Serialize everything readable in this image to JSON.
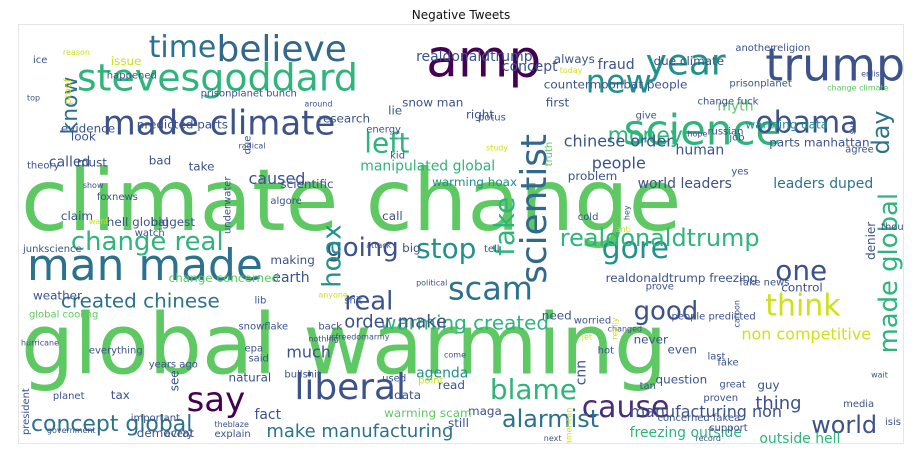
{
  "title": "Negative Tweets",
  "words": [
    {
      "text": "climate change",
      "color": "#5ec962"
    },
    {
      "text": "global warming",
      "color": "#5ec962"
    },
    {
      "text": "man made",
      "color": "#2c728e"
    },
    {
      "text": "amp",
      "color": "#440154"
    },
    {
      "text": "trump",
      "color": "#3b528b"
    },
    {
      "text": "believe",
      "color": "#31688e"
    },
    {
      "text": "stevesgoddard",
      "color": "#2fb47c"
    },
    {
      "text": "science",
      "color": "#2fb47c"
    },
    {
      "text": "year",
      "color": "#21918c"
    },
    {
      "text": "time",
      "color": "#2c728e"
    },
    {
      "text": "made climate",
      "color": "#3b528b"
    },
    {
      "text": "new",
      "color": "#21918c"
    },
    {
      "text": "obama",
      "color": "#3b528b"
    },
    {
      "text": "scientist",
      "color": "#31688e"
    },
    {
      "text": "liberal",
      "color": "#3b528b"
    },
    {
      "text": "say",
      "color": "#440154"
    },
    {
      "text": "gore",
      "color": "#21918c"
    },
    {
      "text": "think",
      "color": "#cde11d"
    },
    {
      "text": "cause",
      "color": "#472d7b"
    },
    {
      "text": "blame",
      "color": "#2fb47c"
    },
    {
      "text": "scam",
      "color": "#2c728e"
    },
    {
      "text": "real",
      "color": "#3b528b"
    },
    {
      "text": "change real",
      "color": "#2fb47c"
    },
    {
      "text": "going",
      "color": "#3b528b"
    },
    {
      "text": "stop",
      "color": "#21918c"
    },
    {
      "text": "hoax",
      "color": "#21918c"
    },
    {
      "text": "fake",
      "color": "#2fb47c"
    },
    {
      "text": "left",
      "color": "#2fb47c"
    },
    {
      "text": "money",
      "color": "#2fb47c"
    },
    {
      "text": "know",
      "color": "#2c728e"
    },
    {
      "text": "one",
      "color": "#3b528b"
    },
    {
      "text": "good",
      "color": "#3b528b"
    },
    {
      "text": "world",
      "color": "#3b528b"
    },
    {
      "text": "made global",
      "color": "#2fb47c"
    },
    {
      "text": "alarmist",
      "color": "#2c728e"
    },
    {
      "text": "concept global",
      "color": "#2c728e"
    },
    {
      "text": "realdonaldtrump",
      "color": "#2fb47c"
    },
    {
      "text": "created chinese",
      "color": "#2c728e"
    },
    {
      "text": "warming created",
      "color": "#2fb47c"
    },
    {
      "text": "make manufacturing",
      "color": "#2c728e"
    },
    {
      "text": "order make",
      "color": "#3b528b"
    },
    {
      "text": "day",
      "color": "#2c728e"
    },
    {
      "text": "chinese order",
      "color": "#3b528b"
    },
    {
      "text": "people",
      "color": "#3b528b"
    },
    {
      "text": "earth",
      "color": "#3b528b"
    },
    {
      "text": "fact",
      "color": "#3b528b"
    },
    {
      "text": "thing",
      "color": "#3b528b"
    },
    {
      "text": "much",
      "color": "#3b528b"
    },
    {
      "text": "manufacturing non",
      "color": "#3b528b"
    },
    {
      "text": "agenda",
      "color": "#21918c"
    },
    {
      "text": "non competitive",
      "color": "#cde11d"
    },
    {
      "text": "caused",
      "color": "#3b528b"
    },
    {
      "text": "called",
      "color": "#3b528b"
    },
    {
      "text": "fraud",
      "color": "#3b528b"
    },
    {
      "text": "concept",
      "color": "#3b528b"
    },
    {
      "text": "myth",
      "color": "#5ec962"
    },
    {
      "text": "human",
      "color": "#3b528b"
    },
    {
      "text": "warming data",
      "color": "#21918c"
    },
    {
      "text": "world leaders",
      "color": "#3b528b"
    },
    {
      "text": "leaders duped",
      "color": "#2c728e"
    },
    {
      "text": "realdonaldtrump freezing",
      "color": "#3b528b"
    },
    {
      "text": "freezing outside",
      "color": "#2fb47c"
    },
    {
      "text": "outside hell",
      "color": "#2fb47c"
    },
    {
      "text": "duped manipulated",
      "color": "#3b528b"
    },
    {
      "text": "manipulated global",
      "color": "#2fb47c"
    },
    {
      "text": "warming hoax",
      "color": "#21918c"
    },
    {
      "text": "realdonaldtrump",
      "color": "#3b528b"
    },
    {
      "text": "countermoonbat people",
      "color": "#3b528b"
    },
    {
      "text": "predicted parts",
      "color": "#3b528b"
    },
    {
      "text": "evidence",
      "color": "#3b528b"
    },
    {
      "text": "hell global",
      "color": "#3b528b"
    },
    {
      "text": "change concerned",
      "color": "#5ec962"
    },
    {
      "text": "weather",
      "color": "#3b528b"
    },
    {
      "text": "global cooling",
      "color": "#5ec962"
    },
    {
      "text": "cnn",
      "color": "#3b528b"
    },
    {
      "text": "maga",
      "color": "#3b528b"
    },
    {
      "text": "control",
      "color": "#3b528b"
    },
    {
      "text": "denier",
      "color": "#3b528b"
    },
    {
      "text": "prove",
      "color": "#3b528b"
    },
    {
      "text": "problem",
      "color": "#3b528b"
    },
    {
      "text": "scientific",
      "color": "#3b528b"
    },
    {
      "text": "claim",
      "color": "#3b528b"
    },
    {
      "text": "biggest",
      "color": "#3b528b"
    },
    {
      "text": "must",
      "color": "#3b528b"
    },
    {
      "text": "bad",
      "color": "#3b528b"
    },
    {
      "text": "take",
      "color": "#3b528b"
    },
    {
      "text": "look",
      "color": "#3b528b"
    },
    {
      "text": "natural",
      "color": "#3b528b"
    },
    {
      "text": "democrat",
      "color": "#3b528b"
    },
    {
      "text": "see",
      "color": "#3b528b"
    },
    {
      "text": "warming scam",
      "color": "#5ec962"
    },
    {
      "text": "still",
      "color": "#3b528b"
    },
    {
      "text": "read",
      "color": "#3b528b"
    },
    {
      "text": "data",
      "color": "#3b528b"
    },
    {
      "text": "need",
      "color": "#3b528b"
    },
    {
      "text": "never",
      "color": "#3b528b"
    },
    {
      "text": "even",
      "color": "#3b528b"
    },
    {
      "text": "fake news",
      "color": "#3b528b"
    },
    {
      "text": "question",
      "color": "#3b528b"
    },
    {
      "text": "people predicted",
      "color": "#3b528b"
    },
    {
      "text": "concerned fakea",
      "color": "#3b528b"
    },
    {
      "text": "snow man",
      "color": "#3b528b"
    },
    {
      "text": "research",
      "color": "#3b528b"
    },
    {
      "text": "right",
      "color": "#3b528b"
    },
    {
      "text": "always",
      "color": "#3b528b"
    },
    {
      "text": "due climate",
      "color": "#3b528b"
    },
    {
      "text": "parts manhattan",
      "color": "#3b528b"
    },
    {
      "text": "agree",
      "color": "#3b528b"
    },
    {
      "text": "job",
      "color": "#3b528b"
    },
    {
      "text": "yes",
      "color": "#3b528b"
    },
    {
      "text": "cold",
      "color": "#3b528b"
    },
    {
      "text": "tell",
      "color": "#3b528b"
    },
    {
      "text": "lib",
      "color": "#3b528b"
    },
    {
      "text": "snowflake",
      "color": "#3b528b"
    },
    {
      "text": "call",
      "color": "#3b528b"
    },
    {
      "text": "making",
      "color": "#3b528b"
    },
    {
      "text": "big",
      "color": "#3b528b"
    },
    {
      "text": "hot",
      "color": "#3b528b"
    },
    {
      "text": "tan",
      "color": "#3b528b"
    },
    {
      "text": "issue",
      "color": "#cde11d"
    },
    {
      "text": "ice",
      "color": "#3b528b"
    },
    {
      "text": "happened",
      "color": "#3b528b"
    },
    {
      "text": "prisonplanet bunch",
      "color": "#3b528b"
    },
    {
      "text": "energy",
      "color": "#3b528b"
    },
    {
      "text": "potus",
      "color": "#3b528b"
    },
    {
      "text": "first",
      "color": "#3b528b"
    },
    {
      "text": "give",
      "color": "#3b528b"
    },
    {
      "text": "change fuck",
      "color": "#3b528b"
    },
    {
      "text": "russian",
      "color": "#3b528b"
    },
    {
      "text": "lie",
      "color": "#3b528b"
    },
    {
      "text": "kid",
      "color": "#3b528b"
    },
    {
      "text": "study",
      "color": "#cde11d"
    },
    {
      "text": "truth",
      "color": "#5ec962"
    },
    {
      "text": "foxnews",
      "color": "#3b528b"
    },
    {
      "text": "show",
      "color": "#3b528b"
    },
    {
      "text": "theory",
      "color": "#3b528b"
    },
    {
      "text": "underwater",
      "color": "#3b528b"
    },
    {
      "text": "due",
      "color": "#3b528b"
    },
    {
      "text": "algore",
      "color": "#3b528b"
    },
    {
      "text": "watch",
      "color": "#3b528b"
    },
    {
      "text": "junkscience",
      "color": "#3b528b"
    },
    {
      "text": "attack",
      "color": "#3b528b"
    },
    {
      "text": "anti",
      "color": "#cde11d"
    },
    {
      "text": "hey",
      "color": "#3b528b"
    },
    {
      "text": "political",
      "color": "#3b528b"
    },
    {
      "text": "shit",
      "color": "#3b528b"
    },
    {
      "text": "anyone",
      "color": "#cde11d"
    },
    {
      "text": "epa",
      "color": "#3b528b"
    },
    {
      "text": "said",
      "color": "#3b528b"
    },
    {
      "text": "hurricane",
      "color": "#3b528b"
    },
    {
      "text": "everything",
      "color": "#3b528b"
    },
    {
      "text": "years ago",
      "color": "#3b528b"
    },
    {
      "text": "nothing",
      "color": "#3b528b"
    },
    {
      "text": "back",
      "color": "#3b528b"
    },
    {
      "text": "usfreedomarmy",
      "color": "#3b528b"
    },
    {
      "text": "worried",
      "color": "#3b528b"
    },
    {
      "text": "changed",
      "color": "#3b528b"
    },
    {
      "text": "last",
      "color": "#3b528b"
    },
    {
      "text": "carbon",
      "color": "#3b528b"
    },
    {
      "text": "come",
      "color": "#3b528b"
    },
    {
      "text": "point",
      "color": "#cde11d"
    },
    {
      "text": "used",
      "color": "#3b528b"
    },
    {
      "text": "great",
      "color": "#3b528b"
    },
    {
      "text": "proven",
      "color": "#3b528b"
    },
    {
      "text": "guy",
      "color": "#3b528b"
    },
    {
      "text": "media",
      "color": "#3b528b"
    },
    {
      "text": "wait",
      "color": "#3b528b"
    },
    {
      "text": "fake",
      "color": "#3b528b"
    },
    {
      "text": "planet",
      "color": "#3b528b"
    },
    {
      "text": "bullshit",
      "color": "#3b528b"
    },
    {
      "text": "president",
      "color": "#3b528b"
    },
    {
      "text": "tax",
      "color": "#3b528b"
    },
    {
      "text": "important",
      "color": "#3b528b"
    },
    {
      "text": "government",
      "color": "#3b528b"
    },
    {
      "text": "every",
      "color": "#3b528b"
    },
    {
      "text": "explain",
      "color": "#3b528b"
    },
    {
      "text": "theblaze",
      "color": "#3b528b"
    },
    {
      "text": "american",
      "color": "#cde11d"
    },
    {
      "text": "next",
      "color": "#3b528b"
    },
    {
      "text": "support",
      "color": "#3b528b"
    },
    {
      "text": "record",
      "color": "#3b528b"
    },
    {
      "text": "taxes",
      "color": "#3b528b"
    },
    {
      "text": "isis",
      "color": "#3b528b"
    },
    {
      "text": "thought",
      "color": "#3b528b"
    },
    {
      "text": "want",
      "color": "#cde11d"
    },
    {
      "text": "reason",
      "color": "#cde11d"
    },
    {
      "text": "another",
      "color": "#3b528b"
    },
    {
      "text": "religion",
      "color": "#3b528b"
    },
    {
      "text": "top",
      "color": "#3b528b"
    },
    {
      "text": "proof",
      "color": "#cde11d"
    },
    {
      "text": "today",
      "color": "#cde11d"
    },
    {
      "text": "prisonplanet",
      "color": "#3b528b"
    },
    {
      "text": "enlist",
      "color": "#3b528b"
    },
    {
      "text": "change climate",
      "color": "#5ec962"
    },
    {
      "text": "hope",
      "color": "#3b528b"
    },
    {
      "text": "radical",
      "color": "#3b528b"
    },
    {
      "text": "around",
      "color": "#3b528b"
    },
    {
      "text": "sun",
      "color": "#3b528b"
    },
    {
      "text": "really",
      "color": "#cde11d"
    },
    {
      "text": "jet",
      "color": "#cde11d"
    }
  ]
}
